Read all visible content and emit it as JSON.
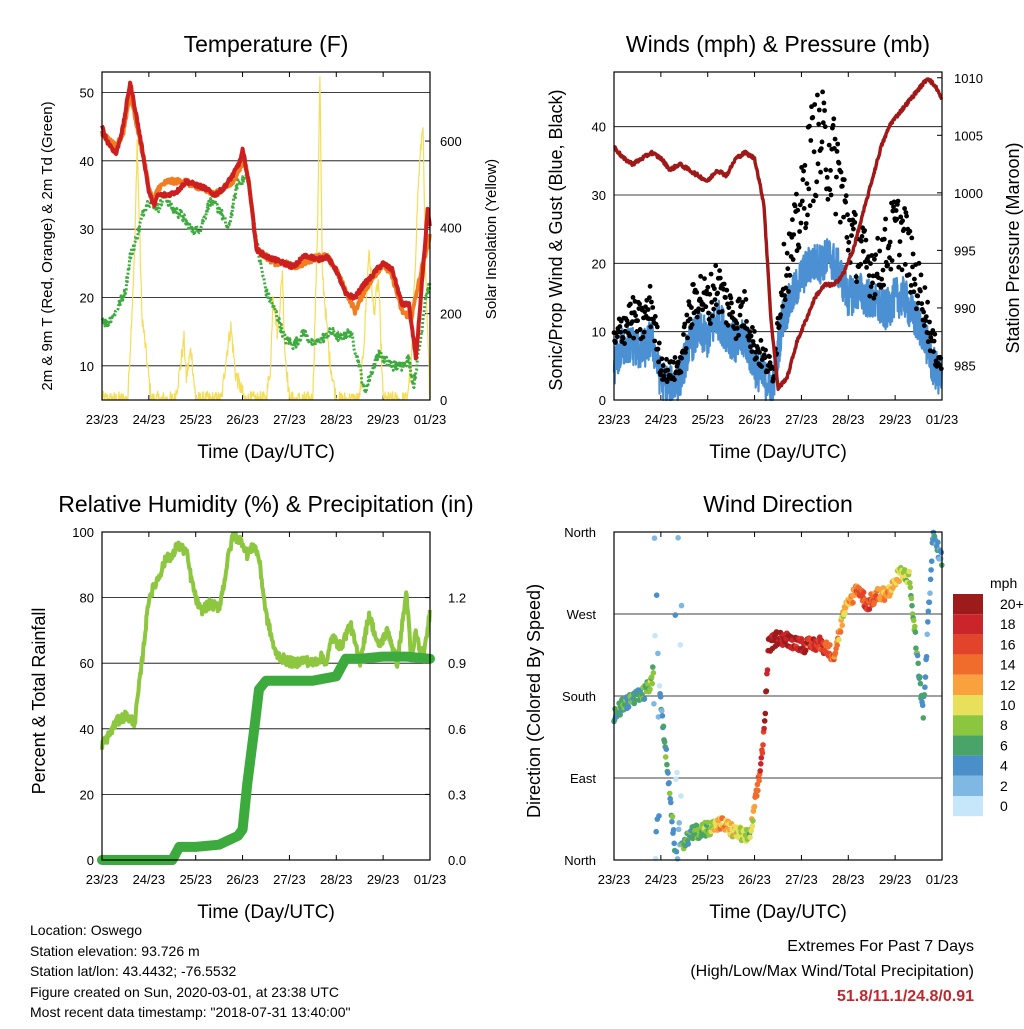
{
  "chart_data": [
    {
      "type": "line",
      "title": "Temperature (F)",
      "xlabel": "Time (Day/UTC)",
      "ylabel": "2m & 9m T (Red, Orange) & 2m Td (Green)",
      "y2label": "Solar Insolation (Yellow)",
      "x_ticks": [
        "23/23",
        "24/23",
        "25/23",
        "26/23",
        "27/23",
        "28/23",
        "29/23",
        "01/23"
      ],
      "ylim": [
        5,
        53
      ],
      "y_ticks": [
        10,
        20,
        30,
        40,
        50
      ],
      "y2lim": [
        0,
        760
      ],
      "y2_ticks": [
        0,
        200,
        400,
        600
      ],
      "colors": {
        "t2m": "#cc1f1f",
        "t9m": "#f07d22",
        "td": "#3daa3d",
        "solar": "#f5dd57"
      },
      "series": [
        {
          "name": "2m T",
          "x": [
            0,
            0.1,
            0.3,
            0.45,
            0.6,
            0.75,
            0.9,
            1.0,
            1.1,
            1.2,
            1.4,
            1.6,
            1.8,
            2.0,
            2.2,
            2.4,
            2.6,
            2.8,
            2.95,
            3.0,
            3.05,
            3.15,
            3.3,
            3.5,
            3.7,
            3.9,
            4.1,
            4.3,
            4.45,
            4.6,
            4.8,
            5.0,
            5.2,
            5.4,
            5.6,
            5.75,
            5.85,
            6.0,
            6.2,
            6.4,
            6.55,
            6.7,
            6.85,
            6.9,
            6.95,
            7.0
          ],
          "y": [
            45,
            43,
            41,
            45,
            51.5,
            46,
            40,
            35.5,
            33.5,
            35,
            35,
            35.5,
            37,
            36.5,
            36,
            35,
            36,
            38,
            40,
            41.5,
            40,
            36,
            27,
            26,
            25.5,
            25,
            24.5,
            26,
            26,
            25.5,
            26,
            24,
            20.5,
            20,
            22,
            23,
            24,
            25,
            24,
            19,
            19,
            11,
            24,
            28,
            33,
            30
          ]
        },
        {
          "name": "9m T",
          "x": [
            0,
            0.3,
            0.45,
            0.6,
            0.75,
            0.9,
            1.0,
            1.1,
            1.2,
            1.4,
            1.6,
            1.8,
            2.0,
            2.2,
            2.4,
            2.6,
            2.8,
            2.95,
            3.05,
            3.15,
            3.3,
            3.5,
            3.7,
            3.9,
            4.1,
            4.3,
            4.6,
            4.8,
            5.0,
            5.2,
            5.4,
            5.6,
            5.8,
            6.0,
            6.2,
            6.4,
            6.6,
            6.85,
            7.0
          ],
          "y": [
            44,
            42,
            44,
            50,
            45,
            40,
            36,
            34,
            36,
            37,
            37,
            37,
            36,
            36,
            35,
            36,
            37,
            39,
            40,
            36,
            27,
            26,
            25,
            25,
            24.5,
            25,
            26,
            26,
            24,
            21,
            18,
            21,
            23,
            25,
            23,
            18,
            17,
            25,
            29
          ]
        },
        {
          "name": "2m Td",
          "x": [
            0,
            0.1,
            0.3,
            0.5,
            0.6,
            0.75,
            0.9,
            1.0,
            1.2,
            1.35,
            1.5,
            1.7,
            1.9,
            2.1,
            2.3,
            2.5,
            2.7,
            2.9,
            3.0,
            3.1,
            3.2,
            3.35,
            3.5,
            3.7,
            3.9,
            4.1,
            4.3,
            4.5,
            4.7,
            4.9,
            5.1,
            5.3,
            5.5,
            5.6,
            5.75,
            5.9,
            6.0,
            6.2,
            6.4,
            6.55,
            6.65,
            6.8,
            6.9,
            7.0
          ],
          "y": [
            17,
            16,
            18,
            21,
            26,
            29,
            33,
            34,
            33,
            35,
            33,
            32,
            30,
            30,
            34,
            33,
            30,
            37,
            37,
            38,
            33,
            26,
            21,
            18,
            14,
            13,
            15,
            13,
            14,
            15,
            14,
            15,
            10,
            6,
            9,
            12,
            11,
            10,
            10,
            11,
            7,
            14,
            20,
            22
          ]
        },
        {
          "name": "Solar Insolation",
          "axis": "y2",
          "x": [
            0,
            0.55,
            0.7,
            0.75,
            0.85,
            1.05,
            1.55,
            1.65,
            1.75,
            1.8,
            1.9,
            2.0,
            2.55,
            2.65,
            2.75,
            2.85,
            3.05,
            3.5,
            3.6,
            3.65,
            3.75,
            3.85,
            3.9,
            4.0,
            4.5,
            4.6,
            4.65,
            4.7,
            4.85,
            5.0,
            5.5,
            5.6,
            5.7,
            5.8,
            5.9,
            6.0,
            6.5,
            6.6,
            6.75,
            6.85,
            6.9,
            7.0
          ],
          "y": [
            0,
            0,
            350,
            600,
            200,
            0,
            0,
            60,
            140,
            50,
            120,
            0,
            0,
            100,
            170,
            60,
            0,
            0,
            80,
            250,
            150,
            300,
            120,
            0,
            0,
            400,
            750,
            300,
            100,
            0,
            0,
            150,
            350,
            200,
            280,
            0,
            0,
            80,
            500,
            650,
            300,
            0
          ]
        }
      ]
    },
    {
      "type": "scatter",
      "title": "Winds (mph) & Pressure (mb)",
      "xlabel": "Time (Day/UTC)",
      "ylabel": "Sonic/Prop Wind & Gust (Blue, Black)",
      "y2label": "Station Pressure (Maroon)",
      "x_ticks": [
        "23/23",
        "24/23",
        "25/23",
        "26/23",
        "27/23",
        "28/23",
        "29/23",
        "01/23"
      ],
      "ylim": [
        0,
        48
      ],
      "y_ticks": [
        0,
        10,
        20,
        30,
        40
      ],
      "y2lim": [
        982,
        1010.5
      ],
      "y2_ticks": [
        985,
        990,
        995,
        1000,
        1005,
        1010
      ],
      "colors": {
        "wind": "#4a90d2",
        "gust": "#000000",
        "pressure": "#a01818"
      },
      "series": [
        {
          "name": "Sonic/Prop Wind",
          "x": [
            0,
            0.2,
            0.4,
            0.6,
            0.8,
            1.0,
            1.2,
            1.4,
            1.6,
            1.8,
            2.0,
            2.2,
            2.4,
            2.6,
            2.8,
            3.0,
            3.2,
            3.4,
            3.6,
            3.8,
            4.0,
            4.2,
            4.4,
            4.6,
            4.8,
            5.0,
            5.2,
            5.4,
            5.6,
            5.8,
            6.0,
            6.2,
            6.4,
            6.6,
            6.8,
            7.0
          ],
          "y": [
            5,
            8,
            8,
            7,
            9,
            3,
            2,
            3,
            8,
            10,
            9,
            12,
            10,
            8,
            9,
            5,
            3,
            2,
            12,
            15,
            18,
            20,
            20,
            21,
            19,
            15,
            16,
            15,
            14,
            13,
            15,
            15,
            12,
            10,
            5,
            3
          ]
        },
        {
          "name": "Gust",
          "x": [
            0,
            0.2,
            0.4,
            0.6,
            0.8,
            1.0,
            1.2,
            1.4,
            1.6,
            1.8,
            2.0,
            2.2,
            2.4,
            2.6,
            2.8,
            3.0,
            3.2,
            3.4,
            3.6,
            3.8,
            4.0,
            4.2,
            4.4,
            4.6,
            4.8,
            5.0,
            5.2,
            5.4,
            5.6,
            5.8,
            6.0,
            6.2,
            6.4,
            6.6,
            6.8,
            7.0
          ],
          "y": [
            8,
            11,
            12,
            11,
            14,
            5,
            4,
            5,
            12,
            16,
            14,
            17,
            14,
            12,
            13,
            8,
            6,
            4,
            18,
            22,
            28,
            36,
            38,
            36,
            33,
            25,
            22,
            20,
            19,
            22,
            25,
            24,
            18,
            15,
            8,
            5
          ]
        },
        {
          "name": "Station Pressure",
          "axis": "y2",
          "x": [
            0,
            0.2,
            0.4,
            0.6,
            0.8,
            1.0,
            1.2,
            1.4,
            1.6,
            1.8,
            2.0,
            2.2,
            2.4,
            2.6,
            2.8,
            3.0,
            3.2,
            3.35,
            3.5,
            3.7,
            3.9,
            4.1,
            4.3,
            4.5,
            4.7,
            4.9,
            5.1,
            5.3,
            5.5,
            5.7,
            5.9,
            6.1,
            6.3,
            6.5,
            6.7,
            6.9,
            7.0
          ],
          "y": [
            1004,
            1003,
            1002.5,
            1003,
            1003.5,
            1003,
            1002,
            1002.5,
            1002,
            1001.5,
            1001,
            1002,
            1001.5,
            1003,
            1003.5,
            1003,
            999,
            989,
            983,
            984,
            987,
            989,
            991,
            992,
            992,
            993,
            995,
            998,
            1001,
            1004,
            1006,
            1007,
            1008,
            1009,
            1010,
            1009,
            1008
          ]
        }
      ]
    },
    {
      "type": "line",
      "title": "Relative Humidity (%) & Precipitation (in)",
      "xlabel": "Time (Day/UTC)",
      "ylabel": "Percent & Total Rainfall",
      "x_ticks": [
        "23/23",
        "24/23",
        "25/23",
        "26/23",
        "27/23",
        "28/23",
        "29/23",
        "01/23"
      ],
      "ylim": [
        0,
        100
      ],
      "y_ticks": [
        0,
        20,
        40,
        60,
        80,
        100
      ],
      "y2lim": [
        0,
        1.5
      ],
      "y2_ticks": [
        "0.0",
        "0.3",
        "0.6",
        "0.9",
        "1.2"
      ],
      "colors": {
        "rh": "#8dc63f",
        "precip": "#3daa3d"
      },
      "series": [
        {
          "name": "Relative Humidity",
          "x": [
            0,
            0.15,
            0.3,
            0.5,
            0.7,
            0.85,
            1.0,
            1.2,
            1.4,
            1.5,
            1.6,
            1.8,
            1.9,
            2.0,
            2.1,
            2.3,
            2.5,
            2.6,
            2.7,
            2.8,
            3.0,
            3.1,
            3.25,
            3.35,
            3.5,
            3.7,
            3.9,
            4.1,
            4.3,
            4.5,
            4.7,
            4.8,
            4.9,
            5.1,
            5.3,
            5.5,
            5.7,
            5.9,
            6.1,
            6.3,
            6.5,
            6.6,
            6.7,
            6.8,
            6.9,
            7.0
          ],
          "y": [
            35,
            38,
            42,
            44,
            42,
            60,
            80,
            86,
            93,
            92,
            96,
            94,
            86,
            80,
            76,
            78,
            77,
            84,
            93,
            99,
            97,
            93,
            96,
            92,
            75,
            63,
            61,
            60,
            61,
            60,
            62,
            60,
            68,
            65,
            72,
            60,
            75,
            65,
            70,
            60,
            82,
            60,
            70,
            62,
            65,
            76
          ]
        },
        {
          "name": "Total Precipitation",
          "axis": "y2",
          "x": [
            0,
            1.5,
            1.65,
            2.0,
            2.5,
            2.9,
            3.0,
            3.1,
            3.25,
            3.35,
            3.5,
            3.8,
            4.0,
            4.3,
            4.5,
            5.0,
            5.2,
            5.5,
            6.0,
            6.5,
            7.0
          ],
          "y": [
            0,
            0,
            0.06,
            0.06,
            0.07,
            0.11,
            0.14,
            0.35,
            0.6,
            0.78,
            0.82,
            0.82,
            0.82,
            0.82,
            0.82,
            0.84,
            0.92,
            0.92,
            0.93,
            0.93,
            0.92
          ]
        }
      ]
    },
    {
      "type": "scatter",
      "title": "Wind Direction",
      "xlabel": "Time (Day/UTC)",
      "ylabel": "Direction (Colored By Speed)",
      "x_ticks": [
        "23/23",
        "24/23",
        "25/23",
        "26/23",
        "27/23",
        "28/23",
        "29/23",
        "01/23"
      ],
      "y_ticks": [
        "North",
        "East",
        "South",
        "West",
        "North"
      ],
      "ylim": [
        0,
        360
      ],
      "legend": {
        "title": "mph",
        "labels": [
          "20+",
          "18",
          "16",
          "14",
          "12",
          "10",
          "8",
          "6",
          "4",
          "2",
          "0"
        ],
        "colors": [
          "#9e1b1b",
          "#c9252a",
          "#e2432b",
          "#f06c2c",
          "#f9a23d",
          "#e8df5a",
          "#8cc63f",
          "#4aa469",
          "#4a8fc9",
          "#7fb8e3",
          "#c6e6fa"
        ]
      },
      "series": [
        {
          "name": "Direction",
          "x": [
            0,
            0.3,
            0.6,
            0.8,
            0.9,
            1.3,
            1.5,
            1.7,
            2.0,
            2.3,
            2.6,
            2.9,
            3.1,
            3.2,
            3.3,
            3.5,
            3.8,
            4.1,
            4.4,
            4.7,
            4.9,
            5.2,
            5.4,
            5.6,
            5.9,
            6.1,
            6.3,
            6.6,
            6.8,
            7.0
          ],
          "y": [
            160,
            175,
            180,
            195,
            230,
            15,
            20,
            30,
            35,
            40,
            30,
            25,
            90,
            140,
            235,
            245,
            240,
            235,
            238,
            225,
            270,
            300,
            280,
            290,
            295,
            315,
            310,
            160,
            355,
            330
          ],
          "speed": [
            6,
            6,
            6,
            8,
            4,
            6,
            6,
            6,
            8,
            12,
            10,
            8,
            16,
            18,
            20,
            20,
            19,
            18,
            17,
            14,
            10,
            14,
            16,
            14,
            12,
            10,
            8,
            4,
            4,
            4
          ]
        }
      ]
    }
  ],
  "footer": {
    "location": "Location: Oswego",
    "elevation": "Station elevation: 93.726 m",
    "latlon": "Station lat/lon: 43.4432; -76.5532",
    "created": "Figure created on Sun, 2020-03-01, at 23:38 UTC",
    "recent": "Most recent data timestamp: \"2018-07-31 13:40:00\"",
    "extremes_title": "Extremes For Past 7 Days",
    "extremes_subtitle": "(High/Low/Max Wind/Total Precipitation)",
    "extremes_values": "51.8/11.1/24.8/0.91"
  }
}
